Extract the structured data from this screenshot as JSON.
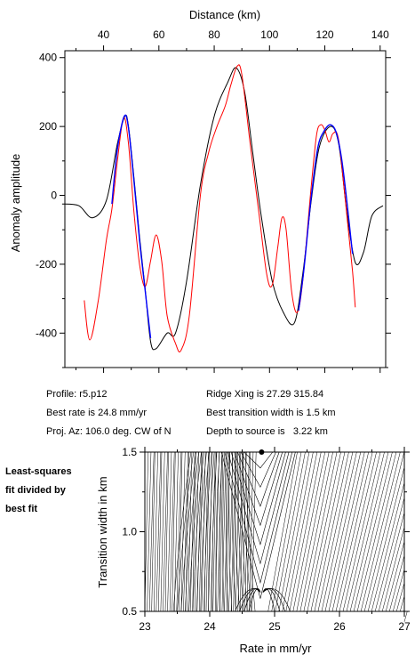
{
  "top_chart": {
    "xlabel": "Distance (km)",
    "ylabel": "Anomaly amplitude",
    "x_ticks": [
      40,
      60,
      80,
      100,
      120,
      140
    ],
    "y_ticks": [
      400,
      200,
      0,
      -200,
      -400
    ],
    "xlim": [
      26,
      142
    ],
    "ylim": [
      -500,
      420
    ],
    "series": [
      {
        "color": "#000000",
        "points": [
          [
            25,
            -25
          ],
          [
            31,
            -30
          ],
          [
            36,
            -65
          ],
          [
            41,
            -15
          ],
          [
            45,
            150
          ],
          [
            47.7,
            230
          ],
          [
            49,
            200
          ],
          [
            51,
            50
          ],
          [
            53,
            -120
          ],
          [
            55,
            -270
          ],
          [
            57,
            -425
          ],
          [
            59,
            -445
          ],
          [
            63,
            -400
          ],
          [
            66,
            -400
          ],
          [
            70,
            -250
          ],
          [
            75,
            30
          ],
          [
            80,
            230
          ],
          [
            85,
            330
          ],
          [
            88,
            370
          ],
          [
            91,
            300
          ],
          [
            94,
            120
          ],
          [
            97,
            -60
          ],
          [
            101,
            -250
          ],
          [
            105,
            -340
          ],
          [
            109,
            -370
          ],
          [
            112,
            -230
          ],
          [
            115,
            -20
          ],
          [
            118,
            140
          ],
          [
            122,
            200
          ],
          [
            125,
            150
          ],
          [
            128,
            -50
          ],
          [
            131,
            -195
          ],
          [
            134,
            -165
          ],
          [
            137,
            -60
          ],
          [
            141,
            -30
          ]
        ]
      },
      {
        "color": "#ff0000",
        "points": [
          [
            33,
            -305
          ],
          [
            35,
            -420
          ],
          [
            38,
            -310
          ],
          [
            41,
            -130
          ],
          [
            43,
            -40
          ],
          [
            45,
            100
          ],
          [
            47.2,
            225
          ],
          [
            49,
            150
          ],
          [
            51,
            -50
          ],
          [
            53,
            -200
          ],
          [
            55,
            -265
          ],
          [
            57,
            -190
          ],
          [
            59,
            -115
          ],
          [
            61,
            -190
          ],
          [
            63,
            -350
          ],
          [
            66,
            -430
          ],
          [
            68,
            -450
          ],
          [
            71,
            -350
          ],
          [
            75,
            0
          ],
          [
            78,
            125
          ],
          [
            81,
            200
          ],
          [
            84,
            260
          ],
          [
            86,
            320
          ],
          [
            88.3,
            375
          ],
          [
            90,
            350
          ],
          [
            93,
            150
          ],
          [
            96,
            -40
          ],
          [
            99,
            -230
          ],
          [
            101,
            -260
          ],
          [
            103,
            -150
          ],
          [
            104.5,
            -65
          ],
          [
            106,
            -100
          ],
          [
            108,
            -280
          ],
          [
            110,
            -340
          ],
          [
            112,
            -250
          ],
          [
            115,
            20
          ],
          [
            117,
            175
          ],
          [
            118.5,
            205
          ],
          [
            120,
            190
          ],
          [
            121.5,
            155
          ],
          [
            123,
            180
          ],
          [
            125,
            160
          ],
          [
            128,
            -60
          ],
          [
            130,
            -220
          ],
          [
            131,
            -325
          ]
        ]
      },
      {
        "color": "#0000ff",
        "points": [
          [
            43,
            -25
          ],
          [
            45,
            135
          ],
          [
            47.5,
            230
          ],
          [
            49,
            195
          ],
          [
            51,
            40
          ],
          [
            53,
            -130
          ],
          [
            55,
            -275
          ],
          [
            57,
            -415
          ],
          [
            110.5,
            -335
          ],
          [
            112.5,
            -210
          ],
          [
            115,
            -10
          ],
          [
            117.5,
            140
          ],
          [
            120,
            190
          ],
          [
            122,
            205
          ],
          [
            124,
            185
          ],
          [
            126,
            110
          ],
          [
            128,
            -20
          ],
          [
            130,
            -170
          ]
        ]
      }
    ]
  },
  "info": {
    "profile": "Profile: r5.p12",
    "best_rate": "Best rate is 24.8 mm/yr",
    "proj_az": "Proj. Az: 106.0 deg. CW of N",
    "ridge_xing": "Ridge Xing is 27.29 315.84",
    "best_width": "Best transition width is 1.5 km",
    "depth": "Depth to source is   3.22 km"
  },
  "side_note": [
    "Least-squares",
    "fit divided by",
    "best fit"
  ],
  "bottom_chart": {
    "type": "contour",
    "xlabel": "Rate in mm/yr",
    "ylabel": "Transition width in km",
    "x_ticks": [
      23,
      24,
      25,
      26,
      27
    ],
    "y_ticks": [
      0.5,
      1.0,
      1.5
    ],
    "y_tick_labels": [
      "0.5",
      "1.0",
      "1.5"
    ],
    "xlim": [
      23,
      27
    ],
    "ylim": [
      0.5,
      1.5
    ],
    "best_fit": {
      "rate": 24.8,
      "width": 1.5
    }
  }
}
